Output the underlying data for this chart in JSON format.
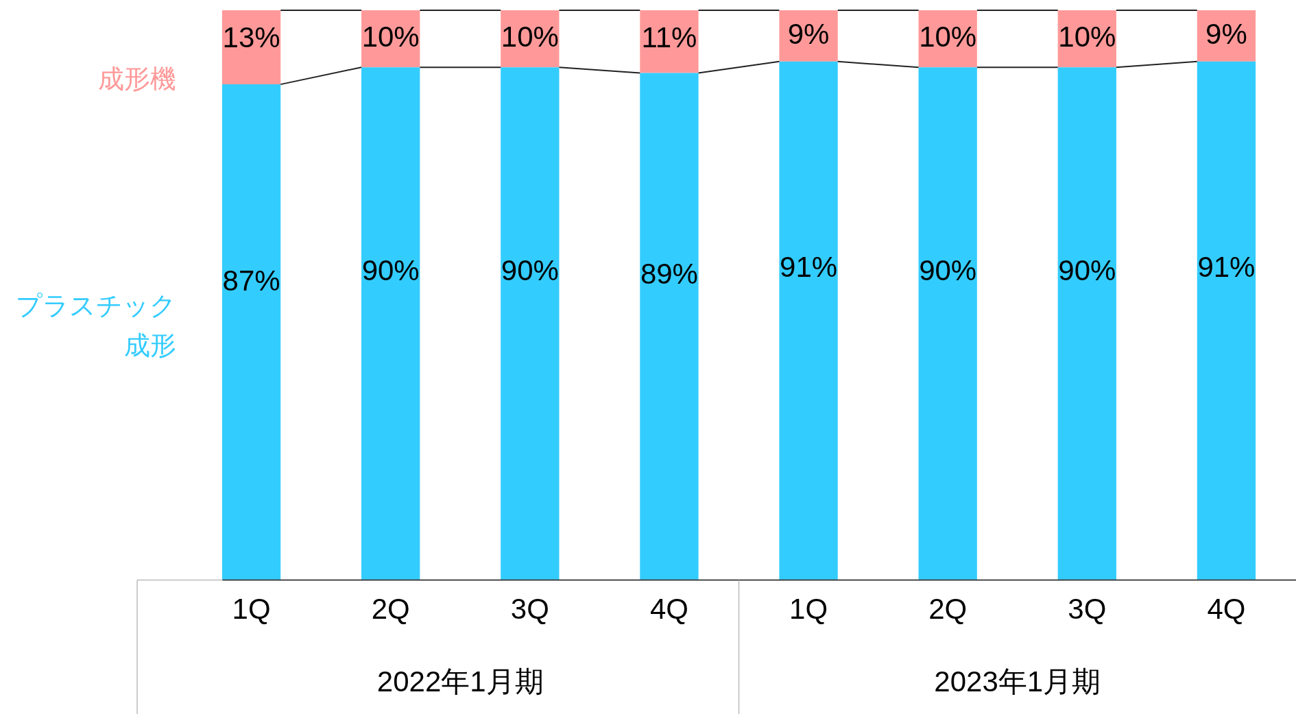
{
  "chart_data": {
    "type": "bar",
    "stacked": true,
    "categories": [
      "1Q",
      "2Q",
      "3Q",
      "4Q",
      "1Q",
      "2Q",
      "3Q",
      "4Q"
    ],
    "series": [
      {
        "name": "プラスチック成形",
        "color": "#33ccff",
        "values": [
          87,
          90,
          90,
          89,
          91,
          90,
          90,
          91
        ],
        "value_labels": [
          "87%",
          "90%",
          "90%",
          "89%",
          "91%",
          "90%",
          "90%",
          "91%"
        ]
      },
      {
        "name": "成形機",
        "color": "#ff9999",
        "values": [
          13,
          10,
          10,
          11,
          9,
          10,
          10,
          9
        ],
        "value_labels": [
          "13%",
          "10%",
          "10%",
          "11%",
          "9%",
          "10%",
          "10%",
          "9%"
        ]
      }
    ],
    "ylim": [
      0,
      100
    ],
    "tick_labels": "x",
    "grid": false,
    "legend": false,
    "annotations": [
      "2022年1月期",
      "2023年1月期"
    ]
  }
}
